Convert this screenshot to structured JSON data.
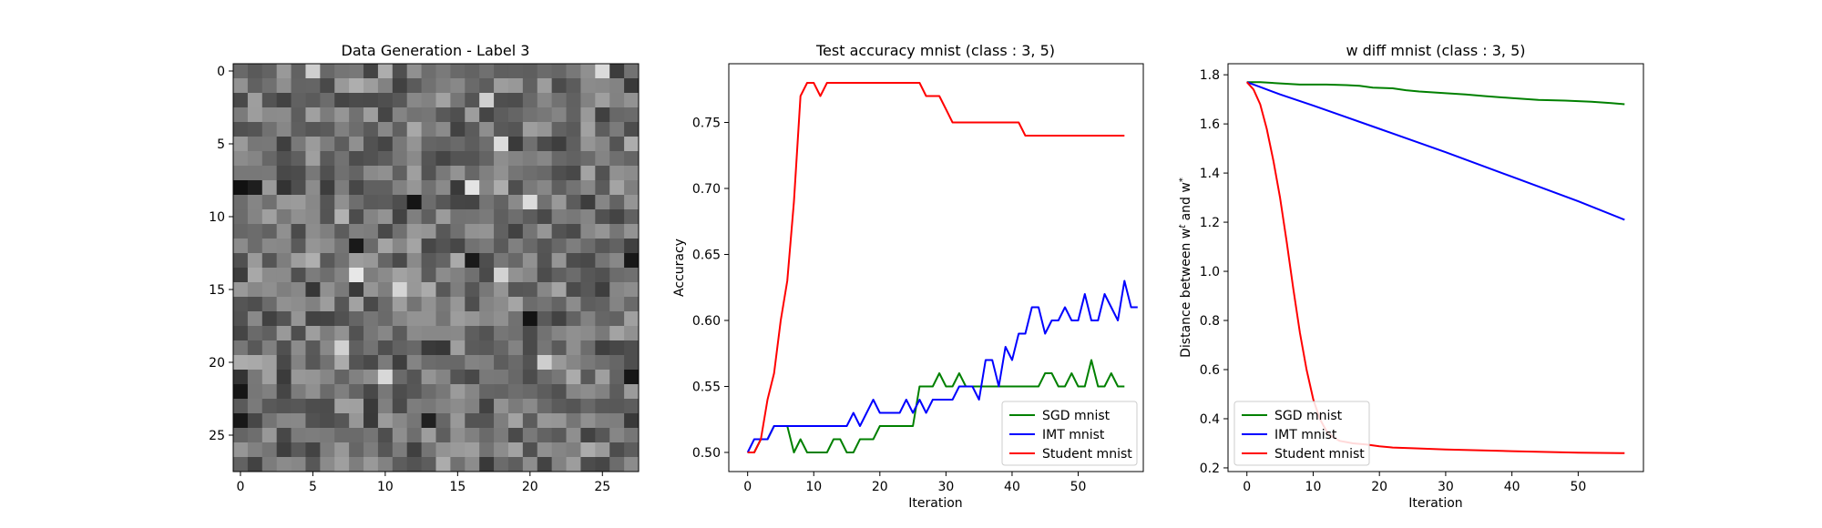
{
  "chart_data": [
    {
      "type": "heatmap",
      "title": "Data Generation - Label 3",
      "colormap": "gray",
      "rows": 28,
      "cols": 28,
      "xticks": [
        0,
        5,
        10,
        15,
        20,
        25
      ],
      "yticks": [
        0,
        5,
        10,
        15,
        20,
        25
      ],
      "random_seed": 7,
      "dark_cells": [
        [
          8,
          0
        ],
        [
          8,
          1
        ],
        [
          20,
          21
        ],
        [
          21,
          27
        ],
        [
          22,
          0
        ],
        [
          24,
          0
        ],
        [
          13,
          16
        ],
        [
          13,
          27
        ],
        [
          12,
          8
        ],
        [
          9,
          12
        ],
        [
          17,
          20
        ],
        [
          24,
          13
        ]
      ],
      "bright_cells": [
        [
          0,
          5
        ],
        [
          0,
          25
        ],
        [
          2,
          17
        ],
        [
          5,
          18
        ],
        [
          8,
          16
        ],
        [
          9,
          20
        ],
        [
          14,
          18
        ],
        [
          15,
          11
        ],
        [
          21,
          10
        ],
        [
          20,
          21
        ],
        [
          14,
          8
        ],
        [
          19,
          7
        ]
      ]
    },
    {
      "type": "line",
      "title": "Test accuracy mnist (class : 3, 5)",
      "xlabel": "Iteration",
      "ylabel": "Accuracy",
      "xlim": [
        -2.85,
        59.85
      ],
      "ylim": [
        0.4855,
        0.7945
      ],
      "xticks": [
        0,
        10,
        20,
        30,
        40,
        50
      ],
      "yticks": [
        0.5,
        0.55,
        0.6,
        0.65,
        0.7,
        0.75
      ],
      "ytick_labels": [
        "0.50",
        "0.55",
        "0.60",
        "0.65",
        "0.70",
        "0.75"
      ],
      "legend_position": "lower-right",
      "series": [
        {
          "name": "SGD mnist",
          "color": "#008000",
          "values": [
            0.5,
            0.5,
            0.51,
            0.51,
            0.52,
            0.52,
            0.52,
            0.5,
            0.51,
            0.5,
            0.5,
            0.5,
            0.5,
            0.51,
            0.51,
            0.5,
            0.5,
            0.51,
            0.51,
            0.51,
            0.52,
            0.52,
            0.52,
            0.52,
            0.52,
            0.52,
            0.55,
            0.55,
            0.55,
            0.56,
            0.55,
            0.55,
            0.56,
            0.55,
            0.55,
            0.55,
            0.55,
            0.55,
            0.55,
            0.55,
            0.55,
            0.55,
            0.55,
            0.55,
            0.55,
            0.56,
            0.56,
            0.55,
            0.55,
            0.56,
            0.55,
            0.55,
            0.57,
            0.55,
            0.55,
            0.56,
            0.55,
            0.55
          ]
        },
        {
          "name": "IMT mnist",
          "color": "#0000ff",
          "values": [
            0.5,
            0.51,
            0.51,
            0.51,
            0.52,
            0.52,
            0.52,
            0.52,
            0.52,
            0.52,
            0.52,
            0.52,
            0.52,
            0.52,
            0.52,
            0.52,
            0.53,
            0.52,
            0.53,
            0.54,
            0.53,
            0.53,
            0.53,
            0.53,
            0.54,
            0.53,
            0.54,
            0.53,
            0.54,
            0.54,
            0.54,
            0.54,
            0.55,
            0.55,
            0.55,
            0.54,
            0.57,
            0.57,
            0.55,
            0.58,
            0.57,
            0.59,
            0.59,
            0.61,
            0.61,
            0.59,
            0.6,
            0.6,
            0.61,
            0.6,
            0.6,
            0.62,
            0.6,
            0.6,
            0.62,
            0.61,
            0.6,
            0.63,
            0.61,
            0.61
          ]
        },
        {
          "name": "Student mnist",
          "color": "#ff0000",
          "values": [
            0.5,
            0.5,
            0.51,
            0.54,
            0.56,
            0.6,
            0.63,
            0.69,
            0.77,
            0.78,
            0.78,
            0.77,
            0.78,
            0.78,
            0.78,
            0.78,
            0.78,
            0.78,
            0.78,
            0.78,
            0.78,
            0.78,
            0.78,
            0.78,
            0.78,
            0.78,
            0.78,
            0.77,
            0.77,
            0.77,
            0.76,
            0.75,
            0.75,
            0.75,
            0.75,
            0.75,
            0.75,
            0.75,
            0.75,
            0.75,
            0.75,
            0.75,
            0.74,
            0.74,
            0.74,
            0.74,
            0.74,
            0.74,
            0.74,
            0.74,
            0.74,
            0.74,
            0.74,
            0.74,
            0.74,
            0.74,
            0.74,
            0.74
          ]
        }
      ]
    },
    {
      "type": "line",
      "title": "w diff mnist (class : 3, 5)",
      "xlabel": "Iteration",
      "ylabel": "Distance between w^t and w^*",
      "xlim": [
        -2.85,
        59.85
      ],
      "ylim": [
        0.185,
        1.845
      ],
      "xticks": [
        0,
        10,
        20,
        30,
        40,
        50
      ],
      "yticks": [
        0.2,
        0.4,
        0.6,
        0.8,
        1.0,
        1.2,
        1.4,
        1.6,
        1.8
      ],
      "ytick_labels": [
        "0.2",
        "0.4",
        "0.6",
        "0.8",
        "1.0",
        "1.2",
        "1.4",
        "1.6",
        "1.8"
      ],
      "legend_position": "lower-left",
      "series": [
        {
          "name": "SGD mnist",
          "color": "#008000",
          "points": [
            [
              0,
              1.77
            ],
            [
              2,
              1.77
            ],
            [
              5,
              1.765
            ],
            [
              8,
              1.76
            ],
            [
              12,
              1.76
            ],
            [
              15,
              1.758
            ],
            [
              17,
              1.755
            ],
            [
              19,
              1.748
            ],
            [
              22,
              1.745
            ],
            [
              24,
              1.737
            ],
            [
              26,
              1.732
            ],
            [
              30,
              1.725
            ],
            [
              33,
              1.72
            ],
            [
              36,
              1.713
            ],
            [
              40,
              1.705
            ],
            [
              44,
              1.698
            ],
            [
              48,
              1.695
            ],
            [
              52,
              1.69
            ],
            [
              55,
              1.685
            ],
            [
              57,
              1.68
            ]
          ]
        },
        {
          "name": "IMT mnist",
          "color": "#0000ff",
          "points": [
            [
              0,
              1.77
            ],
            [
              2,
              1.75
            ],
            [
              5,
              1.72
            ],
            [
              10,
              1.675
            ],
            [
              20,
              1.58
            ],
            [
              30,
              1.485
            ],
            [
              40,
              1.385
            ],
            [
              50,
              1.285
            ],
            [
              57,
              1.21
            ]
          ]
        },
        {
          "name": "Student mnist",
          "color": "#ff0000",
          "points": [
            [
              0,
              1.77
            ],
            [
              1,
              1.74
            ],
            [
              2,
              1.68
            ],
            [
              3,
              1.58
            ],
            [
              4,
              1.45
            ],
            [
              5,
              1.3
            ],
            [
              6,
              1.12
            ],
            [
              7,
              0.93
            ],
            [
              8,
              0.75
            ],
            [
              9,
              0.6
            ],
            [
              10,
              0.48
            ],
            [
              11,
              0.4
            ],
            [
              12,
              0.35
            ],
            [
              13,
              0.325
            ],
            [
              14,
              0.31
            ],
            [
              15,
              0.305
            ],
            [
              16,
              0.3
            ],
            [
              18,
              0.295
            ],
            [
              20,
              0.288
            ],
            [
              22,
              0.283
            ],
            [
              25,
              0.28
            ],
            [
              30,
              0.275
            ],
            [
              40,
              0.268
            ],
            [
              50,
              0.262
            ],
            [
              57,
              0.26
            ]
          ]
        }
      ]
    }
  ]
}
